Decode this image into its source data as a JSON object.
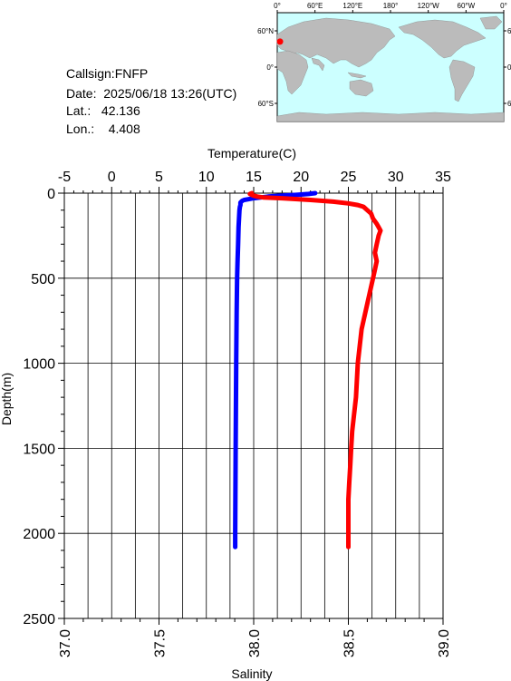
{
  "info": {
    "callsign": "Callsign:FNFP",
    "date": "Date:  2025/06/18 13:26(UTC)",
    "lat": "Lat.:   42.136",
    "lon": "Lon.:    4.408"
  },
  "map": {
    "lon_labels": [
      "0°",
      "60°E",
      "120°E",
      "180°",
      "120°W",
      "60°W",
      "0°"
    ],
    "lat_labels": [
      "60°N",
      "0°",
      "60°S"
    ],
    "ocean_color": "#ccffff",
    "land_color": "#bbbbbb",
    "marker_color": "#ff0000",
    "marker": {
      "lon": 4.408,
      "lat": 42.136
    }
  },
  "chart_data": {
    "type": "line",
    "title": "",
    "top_axis": {
      "label": "Temperature(C)",
      "range": [
        -5,
        35
      ],
      "ticks": [
        "-5",
        "0",
        "5",
        "10",
        "15",
        "20",
        "25",
        "30",
        "35"
      ]
    },
    "bottom_axis": {
      "label": "Salinity",
      "range": [
        37.0,
        39.0
      ],
      "ticks": [
        "37.0",
        "37.5",
        "38.0",
        "38.5",
        "39.0"
      ]
    },
    "y_axis": {
      "label": "Depth(m)",
      "range": [
        0,
        2500
      ],
      "inverted": true,
      "ticks": [
        "0",
        "500",
        "1000",
        "1500",
        "2000",
        "2500"
      ]
    },
    "grid": true,
    "series": [
      {
        "axis": "temperature",
        "color": "#0000ff",
        "depth": [
          0,
          5,
          10,
          15,
          20,
          25,
          30,
          35,
          40,
          45,
          50,
          55,
          60,
          70,
          80,
          100,
          150,
          200,
          300,
          400,
          500,
          700,
          1000,
          1500,
          2000,
          2080
        ],
        "values": [
          21.5,
          20.8,
          19.5,
          18.0,
          16.5,
          15.8,
          15.0,
          14.5,
          14.0,
          13.8,
          13.7,
          13.6,
          13.6,
          13.6,
          13.55,
          13.5,
          13.45,
          13.4,
          13.35,
          13.3,
          13.25,
          13.2,
          13.15,
          13.1,
          13.05,
          13.05
        ]
      },
      {
        "axis": "salinity",
        "color": "#ff0000",
        "depth": [
          0,
          5,
          10,
          15,
          20,
          25,
          30,
          40,
          50,
          60,
          70,
          80,
          100,
          120,
          150,
          180,
          200,
          220,
          250,
          300,
          350,
          400,
          450,
          500,
          600,
          700,
          800,
          900,
          1000,
          1100,
          1200,
          1300,
          1400,
          1500,
          1600,
          1700,
          1800,
          1900,
          2000,
          2080
        ],
        "values": [
          37.99,
          37.98,
          37.99,
          38.0,
          38.02,
          38.05,
          38.15,
          38.3,
          38.42,
          38.5,
          38.55,
          38.58,
          38.6,
          38.62,
          38.63,
          38.65,
          38.66,
          38.67,
          38.66,
          38.65,
          38.64,
          38.65,
          38.64,
          38.63,
          38.61,
          38.59,
          38.57,
          38.56,
          38.55,
          38.545,
          38.54,
          38.53,
          38.52,
          38.515,
          38.51,
          38.505,
          38.5,
          38.5,
          38.5,
          38.5
        ]
      }
    ]
  }
}
